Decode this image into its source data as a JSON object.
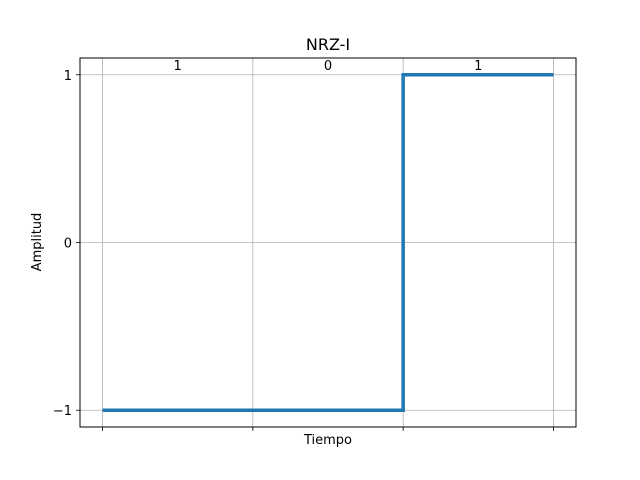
{
  "chart_data": {
    "type": "line",
    "step": true,
    "title": "NRZ-I",
    "xlabel": "Tiempo",
    "ylabel": "Amplitud",
    "bits": [
      "1",
      "0",
      "1"
    ],
    "x": [
      0,
      1,
      2,
      2,
      3
    ],
    "y": [
      -1,
      -1,
      -1,
      1,
      1
    ],
    "xlim": [
      -0.15,
      3.15
    ],
    "ylim": [
      -1.1,
      1.1
    ],
    "xticks": [
      0,
      1,
      2,
      3
    ],
    "show_x_tick_labels": false,
    "yticks": [
      -1,
      0,
      1
    ],
    "ytick_labels": [
      "−1",
      "0",
      "1"
    ],
    "grid": true,
    "legend": "none",
    "line_color": "#1f77b4",
    "grid_color": "#b0b0b0"
  }
}
